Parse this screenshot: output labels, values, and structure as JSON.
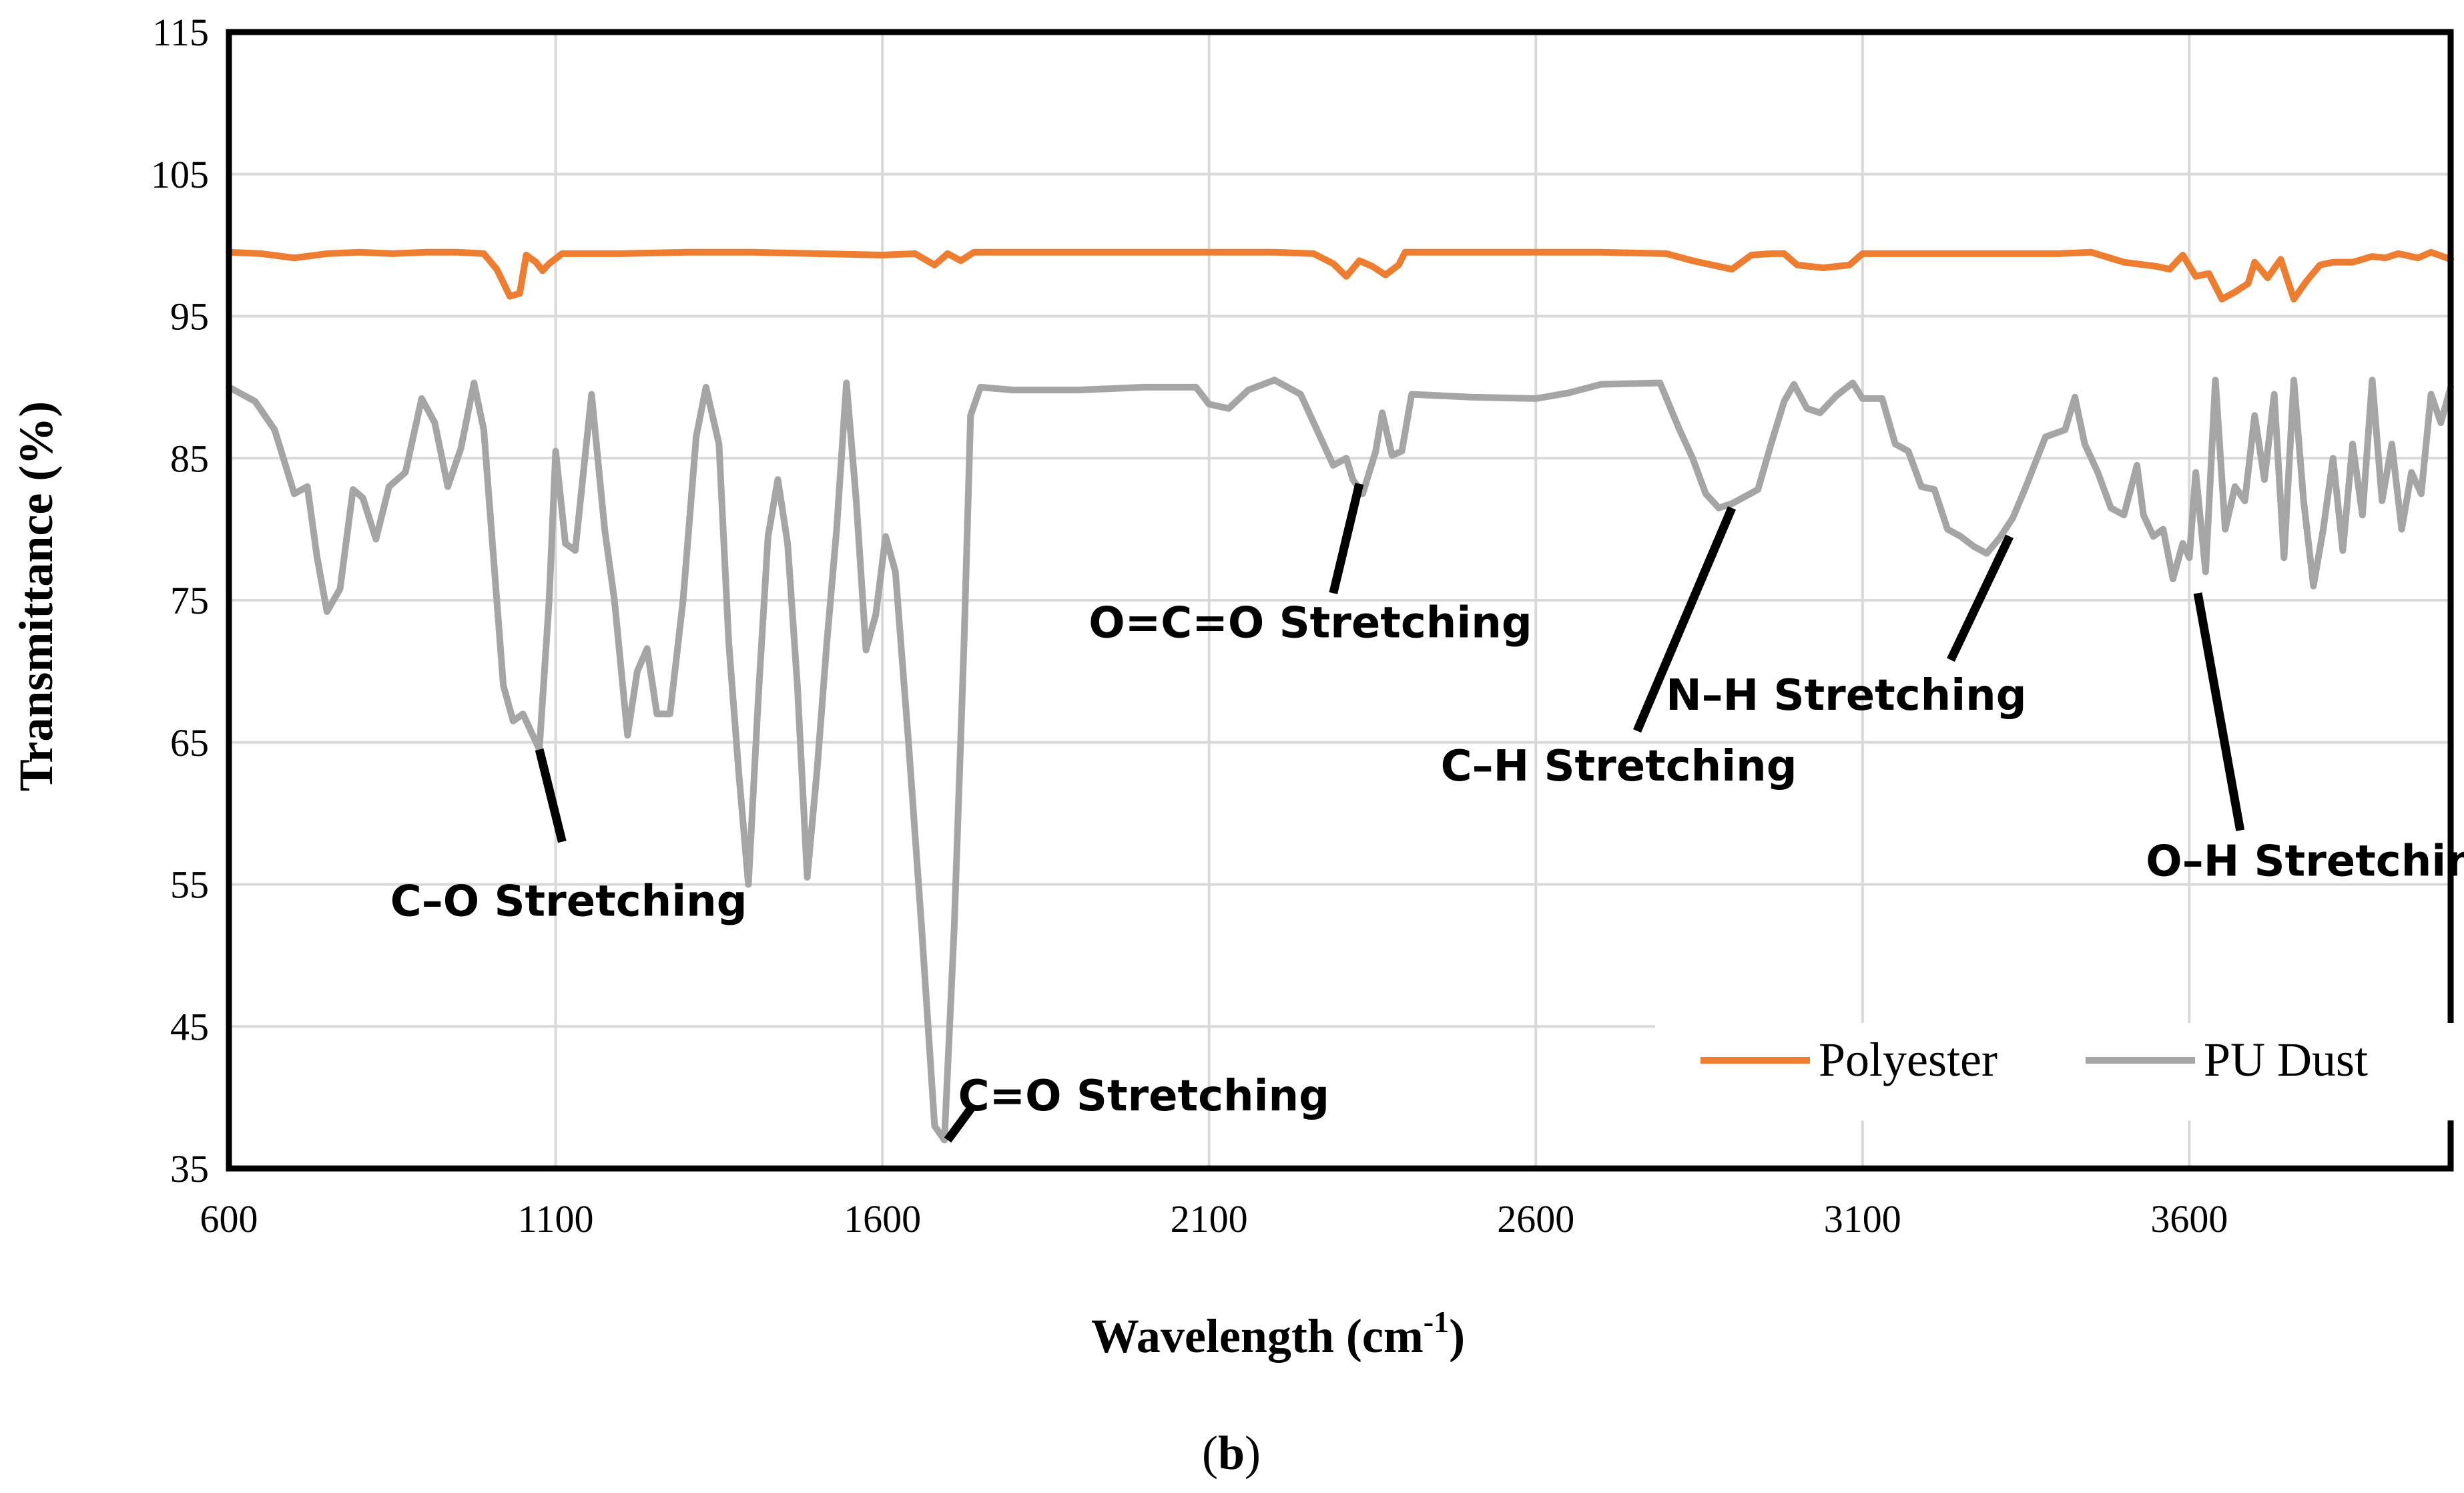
{
  "chart_data": {
    "type": "line",
    "xlabel_main": "Wavelength (cm",
    "xlabel_sup": "-1",
    "xlabel_close": ")",
    "ylabel": "Transmittance (%)",
    "xlim": [
      600,
      4000
    ],
    "ylim": [
      35,
      115
    ],
    "xticks": [
      600,
      1100,
      1600,
      2100,
      2600,
      3100,
      3600
    ],
    "yticks": [
      35,
      45,
      55,
      65,
      75,
      85,
      95,
      105,
      115
    ],
    "grid": true,
    "legend_position": "bottom-right",
    "series": [
      {
        "name": "Polyester",
        "color": "#ED7D31",
        "points": [
          [
            600,
            99.5
          ],
          [
            650,
            99.4
          ],
          [
            700,
            99.1
          ],
          [
            750,
            99.4
          ],
          [
            800,
            99.5
          ],
          [
            850,
            99.4
          ],
          [
            900,
            99.5
          ],
          [
            950,
            99.5
          ],
          [
            990,
            99.4
          ],
          [
            1010,
            98.3
          ],
          [
            1030,
            96.4
          ],
          [
            1045,
            96.6
          ],
          [
            1055,
            99.3
          ],
          [
            1070,
            98.8
          ],
          [
            1080,
            98.2
          ],
          [
            1090,
            98.7
          ],
          [
            1110,
            99.4
          ],
          [
            1200,
            99.4
          ],
          [
            1300,
            99.5
          ],
          [
            1400,
            99.5
          ],
          [
            1500,
            99.4
          ],
          [
            1600,
            99.3
          ],
          [
            1650,
            99.4
          ],
          [
            1680,
            98.6
          ],
          [
            1700,
            99.4
          ],
          [
            1720,
            98.9
          ],
          [
            1740,
            99.5
          ],
          [
            1800,
            99.5
          ],
          [
            2000,
            99.5
          ],
          [
            2200,
            99.5
          ],
          [
            2260,
            99.4
          ],
          [
            2290,
            98.7
          ],
          [
            2310,
            97.8
          ],
          [
            2330,
            98.9
          ],
          [
            2350,
            98.5
          ],
          [
            2370,
            97.9
          ],
          [
            2390,
            98.6
          ],
          [
            2400,
            99.5
          ],
          [
            2500,
            99.5
          ],
          [
            2700,
            99.5
          ],
          [
            2800,
            99.4
          ],
          [
            2840,
            98.9
          ],
          [
            2880,
            98.5
          ],
          [
            2900,
            98.3
          ],
          [
            2930,
            99.3
          ],
          [
            2960,
            99.4
          ],
          [
            2980,
            99.4
          ],
          [
            3000,
            98.6
          ],
          [
            3040,
            98.4
          ],
          [
            3080,
            98.6
          ],
          [
            3100,
            99.4
          ],
          [
            3200,
            99.4
          ],
          [
            3300,
            99.4
          ],
          [
            3400,
            99.4
          ],
          [
            3450,
            99.5
          ],
          [
            3500,
            98.8
          ],
          [
            3550,
            98.5
          ],
          [
            3570,
            98.3
          ],
          [
            3590,
            99.3
          ],
          [
            3610,
            97.8
          ],
          [
            3630,
            98.0
          ],
          [
            3650,
            96.2
          ],
          [
            3670,
            96.7
          ],
          [
            3690,
            97.3
          ],
          [
            3700,
            98.8
          ],
          [
            3720,
            97.7
          ],
          [
            3740,
            99.0
          ],
          [
            3760,
            96.2
          ],
          [
            3780,
            97.5
          ],
          [
            3800,
            98.6
          ],
          [
            3820,
            98.8
          ],
          [
            3850,
            98.8
          ],
          [
            3880,
            99.2
          ],
          [
            3900,
            99.1
          ],
          [
            3920,
            99.4
          ],
          [
            3950,
            99.1
          ],
          [
            3970,
            99.5
          ],
          [
            4000,
            99.0
          ]
        ]
      },
      {
        "name": "PU Dust",
        "color": "#A5A5A5",
        "points": [
          [
            600,
            90
          ],
          [
            640,
            89
          ],
          [
            670,
            87
          ],
          [
            700,
            82.5
          ],
          [
            720,
            83
          ],
          [
            735,
            78
          ],
          [
            750,
            74.2
          ],
          [
            770,
            75.8
          ],
          [
            790,
            82.8
          ],
          [
            805,
            82.2
          ],
          [
            825,
            79.3
          ],
          [
            845,
            83
          ],
          [
            870,
            84
          ],
          [
            895,
            89.2
          ],
          [
            915,
            87.5
          ],
          [
            935,
            83
          ],
          [
            955,
            85.7
          ],
          [
            975,
            90.3
          ],
          [
            990,
            87
          ],
          [
            1005,
            78
          ],
          [
            1020,
            69
          ],
          [
            1035,
            66.5
          ],
          [
            1050,
            67
          ],
          [
            1060,
            66
          ],
          [
            1075,
            64.5
          ],
          [
            1090,
            75
          ],
          [
            1100,
            85.5
          ],
          [
            1115,
            79
          ],
          [
            1130,
            78.5
          ],
          [
            1155,
            89.5
          ],
          [
            1175,
            80
          ],
          [
            1190,
            75
          ],
          [
            1210,
            65.5
          ],
          [
            1225,
            70
          ],
          [
            1240,
            71.6
          ],
          [
            1255,
            67
          ],
          [
            1275,
            67
          ],
          [
            1295,
            75
          ],
          [
            1315,
            86.5
          ],
          [
            1330,
            90
          ],
          [
            1350,
            86
          ],
          [
            1365,
            72
          ],
          [
            1380,
            63
          ],
          [
            1395,
            55
          ],
          [
            1410,
            68
          ],
          [
            1425,
            79.5
          ],
          [
            1440,
            83.5
          ],
          [
            1455,
            79
          ],
          [
            1470,
            69
          ],
          [
            1485,
            55.5
          ],
          [
            1500,
            63
          ],
          [
            1515,
            72
          ],
          [
            1530,
            80
          ],
          [
            1545,
            90.3
          ],
          [
            1560,
            82
          ],
          [
            1575,
            71.5
          ],
          [
            1590,
            74
          ],
          [
            1605,
            79.5
          ],
          [
            1620,
            77
          ],
          [
            1640,
            65
          ],
          [
            1660,
            52
          ],
          [
            1680,
            38
          ],
          [
            1695,
            37
          ],
          [
            1710,
            52
          ],
          [
            1725,
            72
          ],
          [
            1735,
            88
          ],
          [
            1750,
            90
          ],
          [
            1800,
            89.8
          ],
          [
            1900,
            89.8
          ],
          [
            2000,
            90
          ],
          [
            2080,
            90
          ],
          [
            2100,
            88.8
          ],
          [
            2130,
            88.5
          ],
          [
            2160,
            89.8
          ],
          [
            2200,
            90.5
          ],
          [
            2240,
            89.5
          ],
          [
            2265,
            87
          ],
          [
            2290,
            84.5
          ],
          [
            2310,
            85
          ],
          [
            2320,
            83.5
          ],
          [
            2335,
            82.5
          ],
          [
            2355,
            85.5
          ],
          [
            2365,
            88.2
          ],
          [
            2380,
            85.2
          ],
          [
            2395,
            85.5
          ],
          [
            2410,
            89.5
          ],
          [
            2500,
            89.3
          ],
          [
            2600,
            89.2
          ],
          [
            2650,
            89.6
          ],
          [
            2700,
            90.2
          ],
          [
            2790,
            90.3
          ],
          [
            2820,
            87
          ],
          [
            2840,
            85
          ],
          [
            2860,
            82.5
          ],
          [
            2880,
            81.5
          ],
          [
            2900,
            81.8
          ],
          [
            2920,
            82.3
          ],
          [
            2940,
            82.8
          ],
          [
            2960,
            86
          ],
          [
            2980,
            89
          ],
          [
            2995,
            90.2
          ],
          [
            3015,
            88.5
          ],
          [
            3035,
            88.2
          ],
          [
            3060,
            89.4
          ],
          [
            3085,
            90.3
          ],
          [
            3100,
            89.2
          ],
          [
            3130,
            89.2
          ],
          [
            3150,
            86
          ],
          [
            3170,
            85.5
          ],
          [
            3190,
            83
          ],
          [
            3210,
            82.8
          ],
          [
            3230,
            80
          ],
          [
            3250,
            79.5
          ],
          [
            3270,
            78.8
          ],
          [
            3290,
            78.3
          ],
          [
            3310,
            79.4
          ],
          [
            3330,
            80.8
          ],
          [
            3350,
            83
          ],
          [
            3380,
            86.5
          ],
          [
            3410,
            87
          ],
          [
            3425,
            89.3
          ],
          [
            3440,
            86
          ],
          [
            3460,
            84
          ],
          [
            3480,
            81.5
          ],
          [
            3500,
            81
          ],
          [
            3520,
            84.5
          ],
          [
            3530,
            81
          ],
          [
            3545,
            79.5
          ],
          [
            3560,
            80
          ],
          [
            3575,
            76.5
          ],
          [
            3590,
            79
          ],
          [
            3600,
            78
          ],
          [
            3610,
            84
          ],
          [
            3625,
            77
          ],
          [
            3640,
            90.5
          ],
          [
            3655,
            80
          ],
          [
            3670,
            83
          ],
          [
            3685,
            82
          ],
          [
            3700,
            88
          ],
          [
            3715,
            83.5
          ],
          [
            3730,
            89.5
          ],
          [
            3745,
            78
          ],
          [
            3760,
            90.5
          ],
          [
            3775,
            82
          ],
          [
            3790,
            76
          ],
          [
            3805,
            80
          ],
          [
            3820,
            85
          ],
          [
            3835,
            78.5
          ],
          [
            3850,
            86
          ],
          [
            3865,
            81
          ],
          [
            3880,
            90.5
          ],
          [
            3895,
            82
          ],
          [
            3910,
            86
          ],
          [
            3925,
            80
          ],
          [
            3940,
            84
          ],
          [
            3955,
            82.5
          ],
          [
            3970,
            89.5
          ],
          [
            3985,
            87.5
          ],
          [
            4000,
            90
          ]
        ]
      }
    ],
    "annotations": [
      {
        "label": "C–O Stretching",
        "peak": [
          1075,
          64.5
        ],
        "text_at": [
          1120,
          52.8
        ],
        "line_end": [
          1110,
          58
        ]
      },
      {
        "label": "C=O Stretching",
        "peak": [
          1700,
          37
        ],
        "text_at": [
          2000,
          39.1
        ],
        "line_end": [
          1740,
          39.5
        ]
      },
      {
        "label": "O=C=O Stretching",
        "peak": [
          2330,
          83.2
        ],
        "text_at": [
          2255,
          72.4
        ],
        "line_end": [
          2290,
          75.5
        ]
      },
      {
        "label": "C–H Stretching",
        "peak": [
          2900,
          81.5
        ],
        "text_at": [
          2727,
          62.3
        ],
        "line_end": [
          2755,
          65.8
        ]
      },
      {
        "label": "N–H Stretching",
        "peak": [
          3325,
          79.5
        ],
        "text_at": [
          3075,
          67.3
        ],
        "line_end": [
          3235,
          70.8
        ]
      },
      {
        "label": "O–H Stretching",
        "peak": [
          3613,
          75.5
        ],
        "text_at": [
          3810,
          55.6
        ],
        "line_end": [
          3678,
          58.8
        ]
      }
    ]
  },
  "caption": {
    "open": "(",
    "letter": "b",
    "close": ")"
  }
}
